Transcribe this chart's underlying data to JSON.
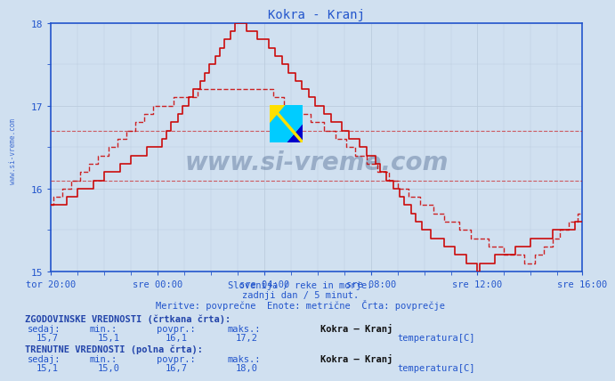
{
  "title": "Kokra - Kranj",
  "title_color": "#2255cc",
  "bg_color": "#d0e0f0",
  "plot_bg_color": "#d0e0f0",
  "line_color": "#cc0000",
  "ylim": [
    15,
    18
  ],
  "yticks": [
    15,
    16,
    17,
    18
  ],
  "xlabel_color": "#2255cc",
  "grid_color": "#bbccdd",
  "avg_hist": 16.1,
  "avg_curr": 16.7,
  "subtitle1": "Slovenija / reke in morje.",
  "subtitle2": "zadnji dan / 5 minut.",
  "subtitle3": "Meritve: povprečne  Enote: metrične  Črta: povprečje",
  "hist_label": "ZGODOVINSKE VREDNOSTI (črtkana črta):",
  "curr_label": "TRENUTNE VREDNOSTI (polna črta):",
  "col_headers": [
    "sedaj:",
    "min.:",
    "povpr.:",
    "maks.:"
  ],
  "station_name": "Kokra – Kranj",
  "hist_values": [
    "15,7",
    "15,1",
    "16,1",
    "17,2"
  ],
  "curr_values": [
    "15,1",
    "15,0",
    "16,7",
    "18,0"
  ],
  "unit_label": "temperatura[C]",
  "watermark": "www.si-vreme.com",
  "side_label": "www.si-vreme.com",
  "xtick_labels": [
    "tor 20:00",
    "sre 00:00",
    "sre 04:00",
    "sre 08:00",
    "sre 12:00",
    "sre 16:00"
  ],
  "n_points": 240
}
